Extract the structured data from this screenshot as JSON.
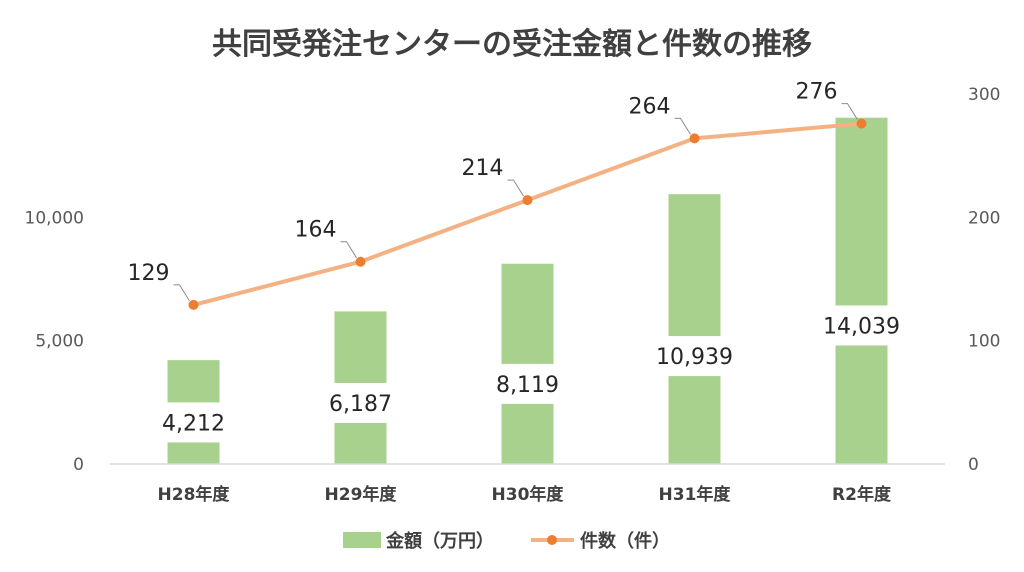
{
  "chart_data": {
    "type": "bar",
    "title": "共同受発注センターの受注金額と件数の推移",
    "categories": [
      "H28年度",
      "H29年度",
      "H30年度",
      "H31年度",
      "R2年度"
    ],
    "series": [
      {
        "name": "金額（万円）",
        "type": "bar",
        "axis": "left",
        "values": [
          4212,
          6187,
          8119,
          10939,
          14039
        ],
        "labels": [
          "4,212",
          "6,187",
          "8,119",
          "10,939",
          "14,039"
        ],
        "color": "#a9d18e"
      },
      {
        "name": "件数（件）",
        "type": "line",
        "axis": "right",
        "values": [
          129,
          164,
          214,
          264,
          276
        ],
        "labels": [
          "129",
          "164",
          "214",
          "264",
          "276"
        ],
        "color": "#f4b183",
        "marker_color": "#ed7d31"
      }
    ],
    "y_left": {
      "ylim": [
        0,
        15000
      ],
      "ticks": [
        0,
        5000,
        10000
      ],
      "tick_labels": [
        "0",
        "5,000",
        "10,000"
      ]
    },
    "y_right": {
      "ylim": [
        0,
        300
      ],
      "ticks": [
        0,
        100,
        200,
        300
      ],
      "tick_labels": [
        "0",
        "100",
        "200",
        "300"
      ]
    },
    "legend_position": "bottom",
    "grid": false
  }
}
